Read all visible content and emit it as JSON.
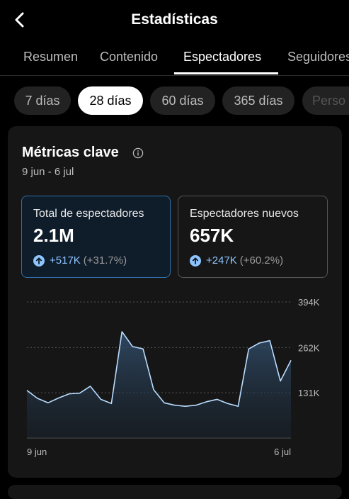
{
  "header": {
    "title": "Estadísticas"
  },
  "tabs": [
    {
      "label": "Resumen"
    },
    {
      "label": "Contenido"
    },
    {
      "label": "Espectadores"
    },
    {
      "label": "Seguidores"
    }
  ],
  "periods": [
    {
      "label": "7 días"
    },
    {
      "label": "28 días"
    },
    {
      "label": "60 días"
    },
    {
      "label": "365 días"
    },
    {
      "label": "Perso"
    }
  ],
  "active_tab": "Espectadores",
  "active_period": "28 días",
  "card": {
    "title": "Métricas clave",
    "date_range": "9 jun - 6 jul",
    "metrics": [
      {
        "label": "Total de espectadores",
        "value": "2.1M",
        "change": "+517K",
        "percent": "(+31.7%)"
      },
      {
        "label": "Espectadores nuevos",
        "value": "657K",
        "change": "+247K",
        "percent": "(+60.2%)"
      }
    ]
  },
  "colors": {
    "accent": "#2f6fa8",
    "line": "#b9dcff",
    "change": "#8ec5ff"
  },
  "chart_data": {
    "type": "area",
    "series": [
      {
        "values": [
          138,
          115,
          102,
          116,
          128,
          130,
          150,
          112,
          100,
          308,
          265,
          258,
          140,
          102,
          95,
          92,
          95,
          105,
          112,
          100,
          92,
          258,
          275,
          282,
          165,
          225
        ]
      }
    ],
    "x_tick_labels": [
      "9 jun",
      "6 jul"
    ],
    "y_ticks": [
      {
        "value": 394,
        "label": "394K"
      },
      {
        "value": 262,
        "label": "262K"
      },
      {
        "value": 131,
        "label": "131K"
      }
    ],
    "ylim": [
      0,
      394
    ]
  }
}
